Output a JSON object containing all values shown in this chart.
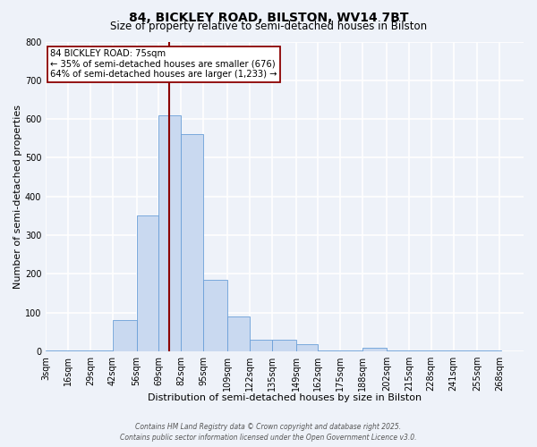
{
  "title": "84, BICKLEY ROAD, BILSTON, WV14 7BT",
  "subtitle": "Size of property relative to semi-detached houses in Bilston",
  "xlabel": "Distribution of semi-detached houses by size in Bilston",
  "ylabel": "Number of semi-detached properties",
  "bin_labels": [
    "3sqm",
    "16sqm",
    "29sqm",
    "42sqm",
    "56sqm",
    "69sqm",
    "82sqm",
    "95sqm",
    "109sqm",
    "122sqm",
    "135sqm",
    "149sqm",
    "162sqm",
    "175sqm",
    "188sqm",
    "202sqm",
    "215sqm",
    "228sqm",
    "241sqm",
    "255sqm",
    "268sqm"
  ],
  "bin_edges": [
    3,
    16,
    29,
    42,
    56,
    69,
    82,
    95,
    109,
    122,
    135,
    149,
    162,
    175,
    188,
    202,
    215,
    228,
    241,
    255,
    268
  ],
  "bar_heights": [
    2,
    2,
    2,
    80,
    350,
    610,
    560,
    185,
    90,
    30,
    30,
    18,
    3,
    3,
    10,
    2,
    2,
    2,
    2,
    2
  ],
  "bar_color": "#c9d9f0",
  "bar_edge_color": "#6a9fd8",
  "ylim": [
    0,
    800
  ],
  "yticks": [
    0,
    100,
    200,
    300,
    400,
    500,
    600,
    700,
    800
  ],
  "vline_x": 75,
  "vline_color": "#8b0000",
  "annotation_title": "84 BICKLEY ROAD: 75sqm",
  "annotation_line1": "← 35% of semi-detached houses are smaller (676)",
  "annotation_line2": "64% of semi-detached houses are larger (1,233) →",
  "annotation_box_color": "#ffffff",
  "annotation_box_edge_color": "#8b0000",
  "footer_line1": "Contains HM Land Registry data © Crown copyright and database right 2025.",
  "footer_line2": "Contains public sector information licensed under the Open Government Licence v3.0.",
  "background_color": "#eef2f9",
  "grid_color": "#ffffff",
  "title_fontsize": 10,
  "subtitle_fontsize": 8.5,
  "axis_label_fontsize": 8,
  "tick_fontsize": 7
}
